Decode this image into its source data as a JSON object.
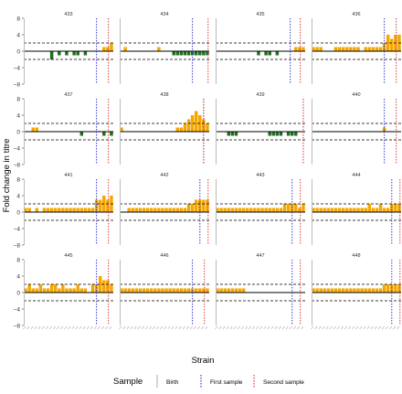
{
  "figure": {
    "ylabel": "Fold change in titre",
    "xlabel": "Strain",
    "legend_title": "Sample",
    "legend_items": [
      {
        "label": "Birth",
        "color": "#bbbbbb"
      },
      {
        "label": "First sample",
        "color": "#3b3bd6"
      },
      {
        "label": "Second sample",
        "color": "#e03a3a"
      }
    ],
    "pos_color": "#f5a700",
    "neg_color": "#1f6e1f"
  },
  "chart_data": {
    "type": "bar",
    "ylim": [
      -8,
      8
    ],
    "yticks": [
      -8,
      -4,
      0,
      4,
      8
    ],
    "thresholds": [
      2,
      -2
    ],
    "n_strains": 24,
    "panels": [
      {
        "id": "433",
        "values": [
          0,
          0,
          0,
          0,
          0,
          0,
          0,
          -2,
          0,
          -1,
          0,
          -1,
          0,
          -1,
          -1,
          0,
          -1,
          0,
          0,
          0,
          0,
          1,
          1,
          2
        ],
        "birth": 0,
        "first": 19.5,
        "second": 22.7
      },
      {
        "id": "434",
        "values": [
          0,
          1,
          0,
          0,
          0,
          0,
          0,
          0,
          0,
          0,
          1,
          0,
          0,
          0,
          -1,
          -1,
          -1,
          -1,
          -1,
          -1,
          -1,
          -1,
          -1,
          -1
        ],
        "birth": 0,
        "first": 19.5,
        "second": 23.7
      },
      {
        "id": "435",
        "values": [
          0,
          0,
          0,
          0,
          0,
          0,
          0,
          0,
          0,
          0,
          0,
          -1,
          0,
          -1,
          -1,
          0,
          -1,
          0,
          0,
          0,
          0,
          1,
          1,
          1
        ],
        "birth": 0,
        "first": 20.0,
        "second": 22.7
      },
      {
        "id": "436",
        "values": [
          1,
          1,
          1,
          0,
          0,
          0,
          1,
          1,
          1,
          1,
          1,
          1,
          1,
          0,
          1,
          1,
          1,
          1,
          1,
          2,
          4,
          3,
          4,
          4
        ],
        "birth": 0,
        "first": 19.5,
        "second": 22.7
      },
      {
        "id": "437",
        "values": [
          0,
          0,
          1,
          1,
          0,
          0,
          0,
          0,
          0,
          0,
          0,
          0,
          0,
          0,
          0,
          -1,
          0,
          0,
          0,
          0,
          0,
          -1,
          0,
          -1
        ],
        "birth": 0,
        "first": 19.5,
        "second": 22.7
      },
      {
        "id": "438",
        "values": [
          1,
          0,
          0,
          0,
          0,
          0,
          0,
          0,
          0,
          0,
          0,
          0,
          0,
          0,
          0,
          1,
          1,
          2,
          3,
          4,
          5,
          4,
          3,
          2
        ],
        "birth": 0,
        "first": 22.5,
        "second": 22.5
      },
      {
        "id": "439",
        "values": [
          0,
          0,
          0,
          -1,
          -1,
          -1,
          0,
          0,
          0,
          0,
          0,
          0,
          0,
          0,
          -1,
          -1,
          -1,
          -1,
          0,
          -1,
          -1,
          -1,
          0,
          0
        ],
        "birth": 0,
        "first": 23.5,
        "second": 23.5
      },
      {
        "id": "440",
        "values": [
          0,
          0,
          0,
          0,
          0,
          0,
          0,
          0,
          0,
          0,
          0,
          0,
          0,
          0,
          0,
          0,
          0,
          0,
          0,
          1,
          0,
          0,
          0,
          0
        ],
        "birth": 0,
        "first": 19.5,
        "second": 22.7
      },
      {
        "id": "441",
        "values": [
          1,
          1,
          0,
          1,
          0,
          1,
          1,
          1,
          1,
          1,
          1,
          1,
          1,
          1,
          1,
          1,
          1,
          1,
          1,
          3,
          3,
          4,
          3,
          4
        ],
        "birth": 0,
        "first": 19.5,
        "second": 22.7
      },
      {
        "id": "442",
        "values": [
          0,
          0,
          1,
          1,
          1,
          1,
          1,
          1,
          1,
          1,
          1,
          1,
          1,
          1,
          1,
          1,
          1,
          1,
          2,
          2,
          3,
          3,
          3,
          3
        ],
        "birth": 0,
        "first": 21.5,
        "second": 23.7
      },
      {
        "id": "443",
        "values": [
          1,
          1,
          1,
          1,
          1,
          1,
          1,
          1,
          1,
          1,
          1,
          1,
          1,
          1,
          1,
          1,
          1,
          1,
          2,
          2,
          2,
          2,
          1,
          2
        ],
        "birth": 0,
        "first": 20.5,
        "second": 22.7
      },
      {
        "id": "444",
        "values": [
          1,
          1,
          1,
          1,
          1,
          1,
          1,
          1,
          1,
          1,
          1,
          1,
          1,
          1,
          1,
          2,
          1,
          1,
          2,
          1,
          1,
          2,
          2,
          2
        ],
        "birth": 0,
        "first": 21.5,
        "second": 23.7
      },
      {
        "id": "445",
        "values": [
          1,
          2,
          1,
          1,
          2,
          1,
          1,
          2,
          2,
          1,
          2,
          1,
          1,
          1,
          2,
          1,
          1,
          0,
          2,
          2,
          4,
          3,
          3,
          2
        ],
        "birth": 0,
        "first": 19.5,
        "second": 22.7
      },
      {
        "id": "446",
        "values": [
          1,
          1,
          1,
          1,
          1,
          1,
          1,
          1,
          1,
          1,
          1,
          1,
          1,
          1,
          1,
          1,
          1,
          1,
          1,
          1,
          1,
          1,
          1,
          1
        ],
        "birth": 0,
        "first": 19.5,
        "second": 22.7
      },
      {
        "id": "447",
        "values": [
          1,
          1,
          1,
          1,
          1,
          1,
          1,
          1,
          0,
          0,
          0,
          0,
          0,
          0,
          0,
          0,
          0,
          0,
          0,
          0,
          0,
          0,
          0,
          0
        ],
        "birth": 0,
        "first": 20.5,
        "second": 22.7
      },
      {
        "id": "448",
        "values": [
          1,
          1,
          1,
          1,
          1,
          1,
          1,
          1,
          1,
          1,
          1,
          1,
          1,
          1,
          1,
          1,
          1,
          1,
          1,
          2,
          2,
          2,
          2,
          2
        ],
        "birth": 0,
        "first": 21.5,
        "second": 23.7
      }
    ]
  }
}
